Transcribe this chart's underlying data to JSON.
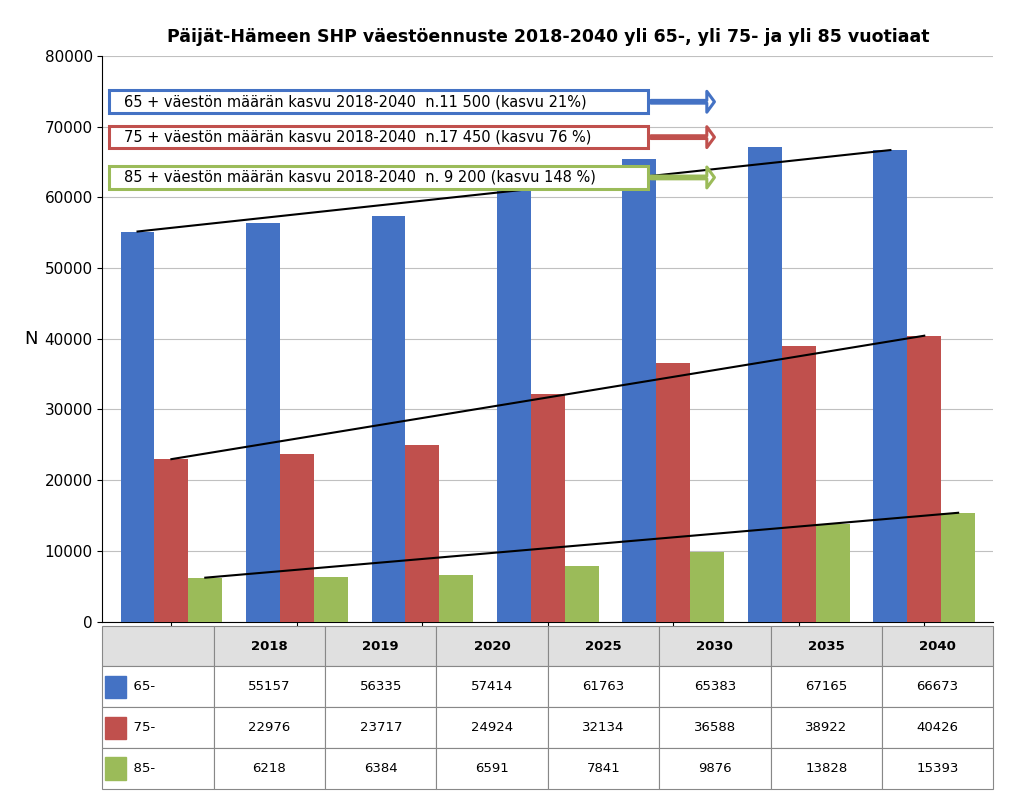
{
  "title": "Päijät-Hämeen SHP väestöennuste 2018-2040 yli 65-, yli 75- ja yli 85 vuotiaat",
  "years": [
    2018,
    2019,
    2020,
    2025,
    2030,
    2035,
    2040
  ],
  "series_65": [
    55157,
    56335,
    57414,
    61763,
    65383,
    67165,
    66673
  ],
  "series_75": [
    22976,
    23717,
    24924,
    32134,
    36588,
    38922,
    40426
  ],
  "series_85": [
    6218,
    6384,
    6591,
    7841,
    9876,
    13828,
    15393
  ],
  "color_65": "#4472C4",
  "color_75": "#C0504D",
  "color_85": "#9BBB59",
  "ylim": [
    0,
    80000
  ],
  "yticks": [
    0,
    10000,
    20000,
    30000,
    40000,
    50000,
    60000,
    70000,
    80000
  ],
  "ylabel": "N",
  "annotation_65": "65 + väestön määrän kasvu 2018-2040  n.11 500 (kasvu 21%)",
  "annotation_75": "75 + väestön määrän kasvu 2018-2040  n.17 450 (kasvu 76 %)",
  "annotation_85": "85 + väestön määrän kasvu 2018-2040  n. 9 200 (kasvu 148 %)",
  "border_color_65": "#4472C4",
  "border_color_75": "#C0504D",
  "border_color_85": "#9BBB59",
  "background_color": "#FFFFFF",
  "table_data": [
    [
      "65-",
      "55157",
      "56335",
      "57414",
      "61763",
      "65383",
      "67165",
      "66673"
    ],
    [
      "75-",
      "22976",
      "23717",
      "24924",
      "32134",
      "36588",
      "38922",
      "40426"
    ],
    [
      "85-",
      "6218",
      "6384",
      "6591",
      "7841",
      "9876",
      "13828",
      "15393"
    ]
  ],
  "table_headers": [
    "",
    "2018",
    "2019",
    "2020",
    "2025",
    "2030",
    "2035",
    "2040"
  ],
  "row_colors": [
    "#4472C4",
    "#C0504D",
    "#9BBB59"
  ],
  "bar_width": 0.27,
  "line_color": "#000000"
}
